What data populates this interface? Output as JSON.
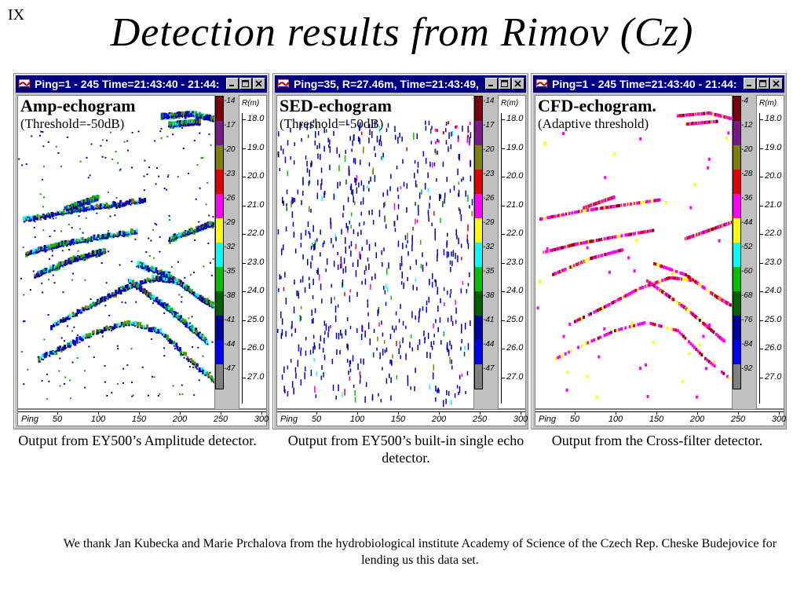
{
  "slide": {
    "number": "IX",
    "title": "Detection results from  Rimov (Cz)"
  },
  "panels": [
    {
      "window_title": "Ping=1 - 245    Time=21:43:40 - 21:44:...",
      "overlay_title": "Amp-echogram",
      "overlay_subtitle": "(Threshold=-50dB)",
      "caption": "Output from EY500’s Amplitude detector.",
      "colorbar_labels": [
        "-14",
        "-17",
        "-20",
        "-23",
        "-26",
        "-29",
        "-32",
        "-35",
        "-38",
        "-41",
        "-44",
        "-47"
      ],
      "style": "amp"
    },
    {
      "window_title": "Ping=35,  R=27.46m,  Time=21:43:49,  ...",
      "overlay_title": "SED-echogram",
      "overlay_subtitle": "(Threshold=-50dB)",
      "caption": "Output from EY500’s built-in single echo detector.",
      "colorbar_labels": [
        "-14",
        "-17",
        "-20",
        "-23",
        "-26",
        "-29",
        "-32",
        "-35",
        "-38",
        "-41",
        "-44",
        "-47"
      ],
      "style": "sed"
    },
    {
      "window_title": "Ping=1 - 245    Time=21:43:40 - 21:44:...",
      "overlay_title": "CFD-echogram.",
      "overlay_subtitle": "(Adaptive threshold)",
      "caption": "Output from the Cross-filter detector.",
      "colorbar_labels": [
        "-4",
        "-12",
        "-20",
        "-28",
        "-36",
        "-44",
        "-52",
        "-60",
        "-68",
        "-76",
        "-84",
        "-92"
      ],
      "style": "cfd"
    }
  ],
  "colorbar_colors": [
    "#7a0010",
    "#7a1a8a",
    "#808000",
    "#e00000",
    "#ff00ff",
    "#ffff00",
    "#00ffff",
    "#00c000",
    "#006000",
    "#0000a0",
    "#0000ff",
    "#808080"
  ],
  "range_axis": {
    "title": "R(m)",
    "labels": [
      "18.0",
      "19.0",
      "20.0",
      "21.0",
      "22.0",
      "23.0",
      "24.0",
      "25.0",
      "26.0",
      "27.0"
    ]
  },
  "ping_axis": {
    "title": "Ping",
    "labels": [
      "50",
      "100",
      "150",
      "200",
      "250",
      "300"
    ]
  },
  "acknowledgement": "We thank Jan Kubecka and Marie Prchalova from the hydrobiological institute Academy of Science of the Czech Rep. Cheske Budejovice for lending us this data set."
}
